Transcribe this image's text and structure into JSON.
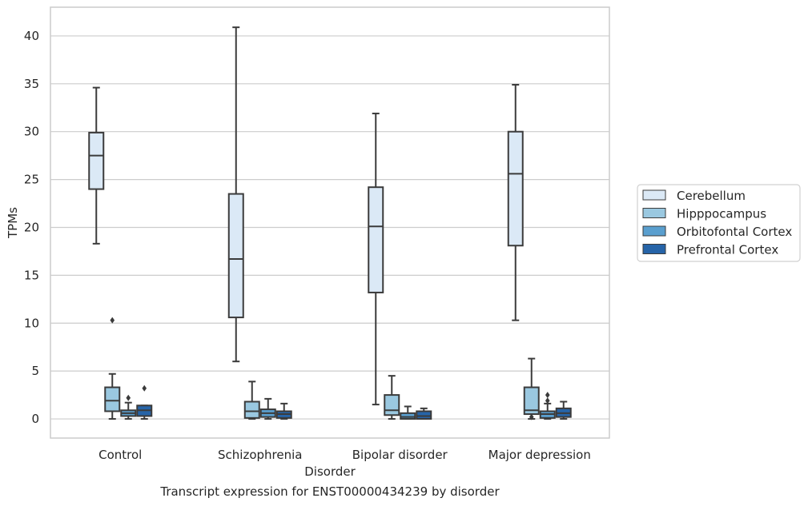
{
  "caption": "Transcript expression for ENST00000434239 by disorder",
  "chart_data": {
    "type": "boxplot",
    "xlabel": "Disorder",
    "ylabel": "TPMs",
    "ylim": [
      -2,
      43
    ],
    "yticks": [
      0,
      5,
      10,
      15,
      20,
      25,
      30,
      35,
      40
    ],
    "grid": "horizontal",
    "legend_position": "right",
    "categories": [
      "Control",
      "Schizophrenia",
      "Bipolar disorder",
      "Major depression"
    ],
    "colors": [
      "#dbe9f6",
      "#9ac8e0",
      "#5a9fcf",
      "#2664a8"
    ],
    "series": [
      {
        "name": "Cerebellum",
        "boxes": [
          {
            "whisker_low": 18.3,
            "q1": 24.0,
            "median": 27.5,
            "q3": 29.9,
            "whisker_high": 34.6,
            "outliers": []
          },
          {
            "whisker_low": 6.0,
            "q1": 10.6,
            "median": 16.7,
            "q3": 23.5,
            "whisker_high": 40.9,
            "outliers": []
          },
          {
            "whisker_low": 1.5,
            "q1": 13.2,
            "median": 20.1,
            "q3": 24.2,
            "whisker_high": 31.9,
            "outliers": []
          },
          {
            "whisker_low": 10.3,
            "q1": 18.1,
            "median": 25.6,
            "q3": 30.0,
            "whisker_high": 34.9,
            "outliers": []
          }
        ]
      },
      {
        "name": "Hipppocampus",
        "boxes": [
          {
            "whisker_low": 0.0,
            "q1": 0.8,
            "median": 1.9,
            "q3": 3.3,
            "whisker_high": 4.7,
            "outliers": [
              10.3
            ]
          },
          {
            "whisker_low": 0.0,
            "q1": 0.1,
            "median": 0.8,
            "q3": 1.8,
            "whisker_high": 3.9,
            "outliers": []
          },
          {
            "whisker_low": 0.0,
            "q1": 0.4,
            "median": 0.9,
            "q3": 2.5,
            "whisker_high": 4.5,
            "outliers": []
          },
          {
            "whisker_low": 0.0,
            "q1": 0.5,
            "median": 0.9,
            "q3": 3.3,
            "whisker_high": 6.3,
            "outliers": [
              0.2
            ]
          }
        ]
      },
      {
        "name": "Orbitofontal Cortex",
        "boxes": [
          {
            "whisker_low": 0.0,
            "q1": 0.3,
            "median": 0.6,
            "q3": 0.9,
            "whisker_high": 1.7,
            "outliers": [
              2.2
            ]
          },
          {
            "whisker_low": 0.0,
            "q1": 0.2,
            "median": 0.6,
            "q3": 1.0,
            "whisker_high": 2.1,
            "outliers": []
          },
          {
            "whisker_low": 0.0,
            "q1": 0.0,
            "median": 0.2,
            "q3": 0.6,
            "whisker_high": 1.3,
            "outliers": []
          },
          {
            "whisker_low": 0.0,
            "q1": 0.1,
            "median": 0.5,
            "q3": 0.8,
            "whisker_high": 1.6,
            "outliers": [
              1.9,
              2.5
            ]
          }
        ]
      },
      {
        "name": "Prefrontal Cortex",
        "boxes": [
          {
            "whisker_low": 0.0,
            "q1": 0.3,
            "median": 0.9,
            "q3": 1.4,
            "whisker_high": 1.4,
            "outliers": [
              3.2
            ]
          },
          {
            "whisker_low": 0.0,
            "q1": 0.1,
            "median": 0.5,
            "q3": 0.8,
            "whisker_high": 1.6,
            "outliers": []
          },
          {
            "whisker_low": 0.0,
            "q1": 0.0,
            "median": 0.3,
            "q3": 0.8,
            "whisker_high": 1.1,
            "outliers": []
          },
          {
            "whisker_low": 0.0,
            "q1": 0.2,
            "median": 0.6,
            "q3": 1.1,
            "whisker_high": 1.8,
            "outliers": []
          }
        ]
      }
    ]
  }
}
